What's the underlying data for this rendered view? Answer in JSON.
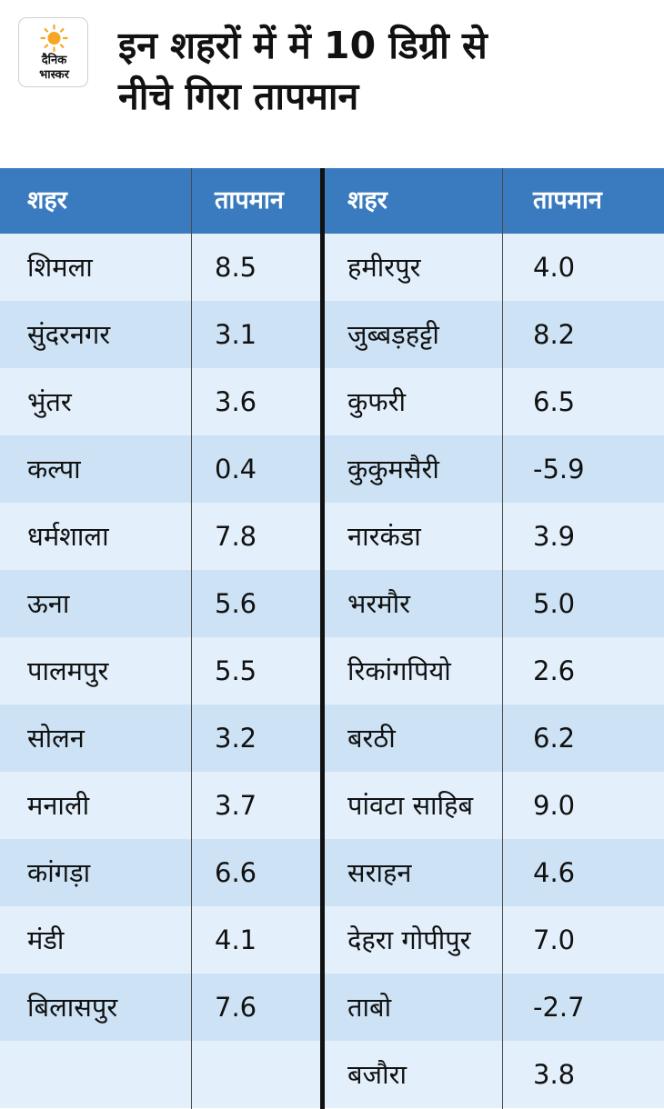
{
  "header": {
    "logo_text": [
      "दैनिक",
      "भास्कर"
    ],
    "title_lines": [
      "इन शहरों में में 10 डिग्री से",
      "नीचे गिरा तापमान"
    ]
  },
  "table": {
    "columns": [
      "शहर",
      "तापमान",
      "शहर",
      "तापमान"
    ],
    "left_rows": [
      {
        "city": "शिमला",
        "temp": "8.5"
      },
      {
        "city": "सुंदरनगर",
        "temp": "3.1"
      },
      {
        "city": "भुंतर",
        "temp": "3.6"
      },
      {
        "city": "कल्पा",
        "temp": "0.4"
      },
      {
        "city": "धर्मशाला",
        "temp": "7.8"
      },
      {
        "city": "ऊना",
        "temp": "5.6"
      },
      {
        "city": "पालमपुर",
        "temp": "5.5"
      },
      {
        "city": "सोलन",
        "temp": "3.2"
      },
      {
        "city": "मनाली",
        "temp": "3.7"
      },
      {
        "city": "कांगड़ा",
        "temp": "6.6"
      },
      {
        "city": "मंडी",
        "temp": "4.1"
      },
      {
        "city": "बिलासपुर",
        "temp": "7.6"
      },
      {
        "city": "",
        "temp": ""
      }
    ],
    "right_rows": [
      {
        "city": "हमीरपुर",
        "temp": "4.0"
      },
      {
        "city": "जुब्बड़हट्टी",
        "temp": "8.2"
      },
      {
        "city": "कुफरी",
        "temp": "6.5"
      },
      {
        "city": "कुकुमसैरी",
        "temp": "-5.9"
      },
      {
        "city": "नारकंडा",
        "temp": "3.9"
      },
      {
        "city": "भरमौर",
        "temp": "5.0"
      },
      {
        "city": "रिकांगपियो",
        "temp": "2.6"
      },
      {
        "city": "बरठी",
        "temp": "6.2"
      },
      {
        "city": "पांवटा साहिब",
        "temp": "9.0"
      },
      {
        "city": "सराहन",
        "temp": "4.6"
      },
      {
        "city": "देहरा गोपीपुर",
        "temp": "7.0"
      },
      {
        "city": "ताबो",
        "temp": "-2.7"
      },
      {
        "city": "बजौरा",
        "temp": "3.8"
      }
    ]
  },
  "colors": {
    "header_blue": "#3a7bbf",
    "row_light": "#e3f0fb",
    "row_dark": "#cde3f5",
    "logo_orange": "#f5a623"
  }
}
